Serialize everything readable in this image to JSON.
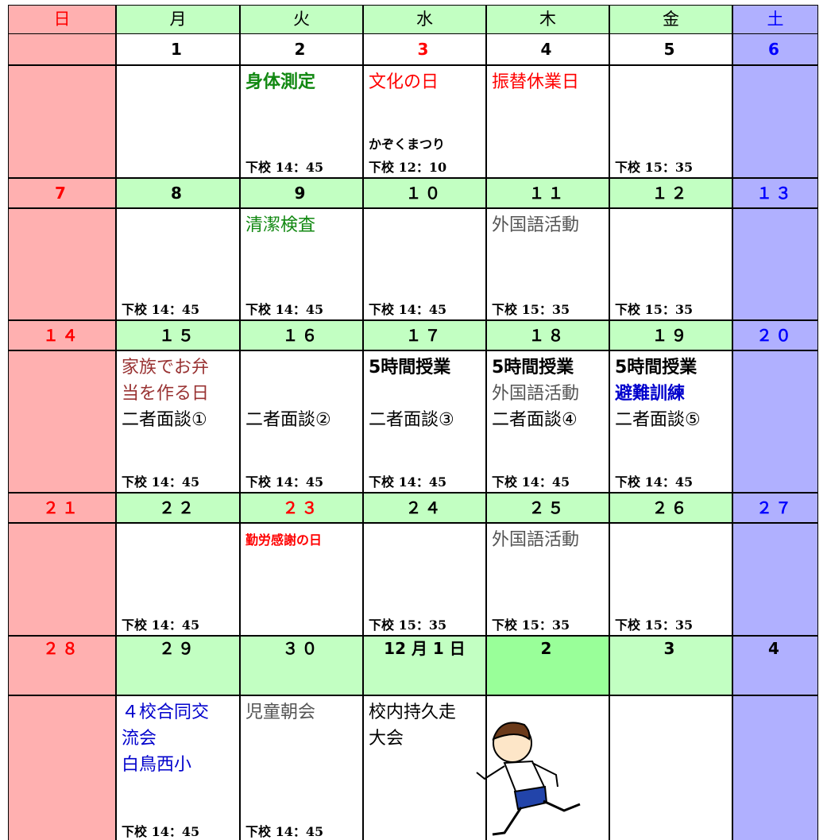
{
  "header": {
    "days": [
      "日",
      "月",
      "火",
      "水",
      "木",
      "金",
      "土"
    ]
  },
  "weeks": [
    {
      "days": [
        {},
        {
          "date": "1"
        },
        {
          "date": "2",
          "events": [
            {
              "text": "身体測定",
              "color": "#118811",
              "bold": true
            }
          ],
          "dismissal": "下校 14：45"
        },
        {
          "date": "3",
          "date_color": "#ff0000",
          "events": [
            {
              "text": "文化の日",
              "color": "#ff0000"
            },
            null,
            {
              "text": "かぞくまつり",
              "color": "#000000",
              "small": true
            }
          ],
          "dismissal": "下校 12：10"
        },
        {
          "date": "4",
          "events": [
            {
              "text": "振替休業日",
              "color": "#ff0000"
            }
          ]
        },
        {
          "date": "5",
          "dismissal": "下校 15：35"
        },
        {
          "date": "6"
        }
      ]
    },
    {
      "days": [
        {
          "date": "7"
        },
        {
          "date": "8",
          "dismissal": "下校 14：45"
        },
        {
          "date": "9",
          "events": [
            {
              "text": "清潔検査",
              "color": "#118811"
            }
          ],
          "dismissal": "下校 14：45"
        },
        {
          "date": "１０",
          "dismissal": "下校 14：45"
        },
        {
          "date": "１１",
          "events": [
            {
              "text": "外国語活動",
              "color": "#555555"
            }
          ],
          "dismissal": "下校 15：35"
        },
        {
          "date": "１２",
          "dismissal": "下校 15：35"
        },
        {
          "date": "１３"
        }
      ]
    },
    {
      "days": [
        {
          "date": "１４"
        },
        {
          "date": "１５",
          "events": [
            {
              "text": "家族でお弁",
              "color": "#993333"
            },
            {
              "text": "当を作る日",
              "color": "#993333"
            },
            {
              "text": "二者面談①",
              "color": "#000000"
            }
          ],
          "dismissal": "下校 14：45"
        },
        {
          "date": "１６",
          "events": [
            null,
            null,
            {
              "text": "二者面談②",
              "color": "#000000"
            }
          ],
          "dismissal": "下校 14：45"
        },
        {
          "date": "１７",
          "events": [
            {
              "text": "5時間授業",
              "color": "#000000",
              "bold": true
            },
            null,
            {
              "text": "二者面談③",
              "color": "#000000"
            }
          ],
          "dismissal": "下校 14：45"
        },
        {
          "date": "１８",
          "events": [
            {
              "text": "5時間授業",
              "color": "#000000",
              "bold": true
            },
            {
              "text": "外国語活動",
              "color": "#555555"
            },
            {
              "text": "二者面談④",
              "color": "#000000"
            }
          ],
          "dismissal": "下校 14：45"
        },
        {
          "date": "１９",
          "events": [
            {
              "text": "5時間授業",
              "color": "#000000",
              "bold": true
            },
            {
              "text": "避難訓練",
              "color": "#0000cc",
              "bold": true
            },
            {
              "text": "二者面談⑤",
              "color": "#000000"
            }
          ],
          "dismissal": "下校 14：45"
        },
        {
          "date": "２０"
        }
      ]
    },
    {
      "days": [
        {
          "date": "２１"
        },
        {
          "date": "２２",
          "dismissal": "下校 14：45"
        },
        {
          "date": "２３",
          "date_color": "#ff0000",
          "events": [
            {
              "text": "勤労感謝の日",
              "color": "#ff0000",
              "small": true
            }
          ]
        },
        {
          "date": "２４",
          "dismissal": "下校 15：35"
        },
        {
          "date": "２５",
          "events": [
            {
              "text": "外国語活動",
              "color": "#555555"
            }
          ],
          "dismissal": "下校 15：35"
        },
        {
          "date": "２６",
          "dismissal": "下校 15：35"
        },
        {
          "date": "２７"
        }
      ]
    },
    {
      "days": [
        {
          "date": "２８"
        },
        {
          "date": "２９",
          "events": [
            {
              "text": "４校合同交",
              "color": "#0000cc"
            },
            {
              "text": "流会",
              "color": "#0000cc"
            },
            {
              "text": "白鳥西小",
              "color": "#0000cc"
            }
          ],
          "dismissal": "下校 14：45"
        },
        {
          "date": "３０",
          "events": [
            {
              "text": "児童朝会",
              "color": "#555555"
            }
          ],
          "dismissal": "下校 14：45"
        },
        {
          "date": "12 月 1 日",
          "events": [
            {
              "text": "校内持久走",
              "color": "#000000"
            },
            {
              "text": "大会",
              "color": "#000000"
            }
          ]
        },
        {
          "date": "2"
        },
        {
          "date": "3"
        },
        {
          "date": "4",
          "date_color": "#000000"
        }
      ]
    }
  ]
}
